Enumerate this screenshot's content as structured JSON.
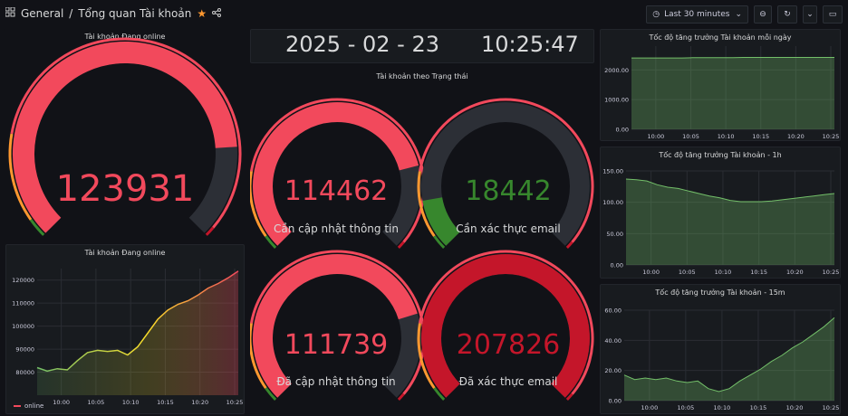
{
  "header": {
    "breadcrumb_root": "General",
    "breadcrumb_sep": "/",
    "breadcrumb_page": "Tổng quan Tài khoản",
    "time_range": "Last 30 minutes"
  },
  "clock": {
    "date": "2025 - 02 - 23",
    "time": "10:25:47"
  },
  "gauge_main": {
    "title": "Tài khoản Đang online",
    "value": "123931",
    "fraction": 0.82,
    "color": "#f2495c"
  },
  "status_title": "Tài khoản theo Trạng thái",
  "gauges": [
    {
      "value": "114462",
      "label": "Cần cập nhật thông tin",
      "fraction": 0.78,
      "color": "#f2495c"
    },
    {
      "value": "18442",
      "label": "Cần xác thực email",
      "fraction": 0.13,
      "color": "#37872d"
    },
    {
      "value": "111739",
      "label": "Đã cập nhật thông tin",
      "fraction": 0.77,
      "color": "#f2495c"
    },
    {
      "value": "207826",
      "label": "Đã xác thực email",
      "fraction": 1.0,
      "color": "#c4162a"
    }
  ],
  "online_chart": {
    "title": "Tài khoản Đang online",
    "legend": "online",
    "chart_data": {
      "type": "line",
      "title": "Tài khoản Đang online",
      "x_ticks": [
        "10:00",
        "10:05",
        "10:10",
        "10:15",
        "10:20",
        "10:25"
      ],
      "y_ticks": [
        "80000",
        "90000",
        "100000",
        "110000",
        "120000"
      ],
      "ylim": [
        70000,
        125000
      ],
      "series": [
        {
          "name": "online",
          "x_minutes": [
            0,
            2,
            4,
            6,
            8,
            10,
            12,
            14,
            16,
            18,
            20,
            22,
            24,
            26,
            28,
            30,
            32,
            34,
            36,
            38,
            40
          ],
          "values": [
            82000,
            80500,
            81500,
            81000,
            85000,
            88500,
            89500,
            89000,
            89500,
            87500,
            91000,
            97000,
            103000,
            107000,
            109500,
            111000,
            113500,
            116500,
            118500,
            121000,
            123900
          ]
        }
      ]
    }
  },
  "daily_chart": {
    "title": "Tốc độ tăng trưởng Tài khoản mỗi ngày",
    "chart_data": {
      "type": "area",
      "x_ticks": [
        "10:00",
        "10:05",
        "10:10",
        "10:15",
        "10:20",
        "10:25"
      ],
      "y_ticks": [
        "0.00",
        "1000.00",
        "2000.00"
      ],
      "ylim": [
        0,
        2800
      ],
      "series": [
        {
          "values": [
            2400,
            2400,
            2400,
            2400,
            2400,
            2400,
            2410,
            2410,
            2410,
            2410,
            2410,
            2420,
            2420,
            2420,
            2420,
            2420,
            2420,
            2420,
            2420,
            2420,
            2420
          ]
        }
      ]
    }
  },
  "hourly_chart": {
    "title": "Tốc độ tăng trưởng Tài khoản - 1h",
    "chart_data": {
      "type": "area",
      "x_ticks": [
        "10:00",
        "10:05",
        "10:10",
        "10:15",
        "10:20",
        "10:25"
      ],
      "y_ticks": [
        "0.00",
        "50.00",
        "100.00",
        "150.00"
      ],
      "ylim": [
        0,
        150
      ],
      "series": [
        {
          "values": [
            137,
            136,
            134,
            128,
            124,
            122,
            118,
            114,
            110,
            107,
            103,
            101,
            101,
            101,
            102,
            104,
            106,
            108,
            110,
            112,
            114
          ]
        }
      ]
    }
  },
  "quarter_chart": {
    "title": "Tốc độ tăng trưởng Tài khoản - 15m",
    "chart_data": {
      "type": "area",
      "x_ticks": [
        "10:00",
        "10:05",
        "10:10",
        "10:15",
        "10:20",
        "10:25"
      ],
      "y_ticks": [
        "0.00",
        "20.00",
        "40.00",
        "60.00"
      ],
      "ylim": [
        0,
        60
      ],
      "series": [
        {
          "values": [
            17,
            14,
            15,
            14,
            15,
            13,
            12,
            13,
            8,
            6,
            8,
            13,
            17,
            21,
            26,
            30,
            35,
            39,
            44,
            49,
            55
          ]
        }
      ]
    }
  }
}
